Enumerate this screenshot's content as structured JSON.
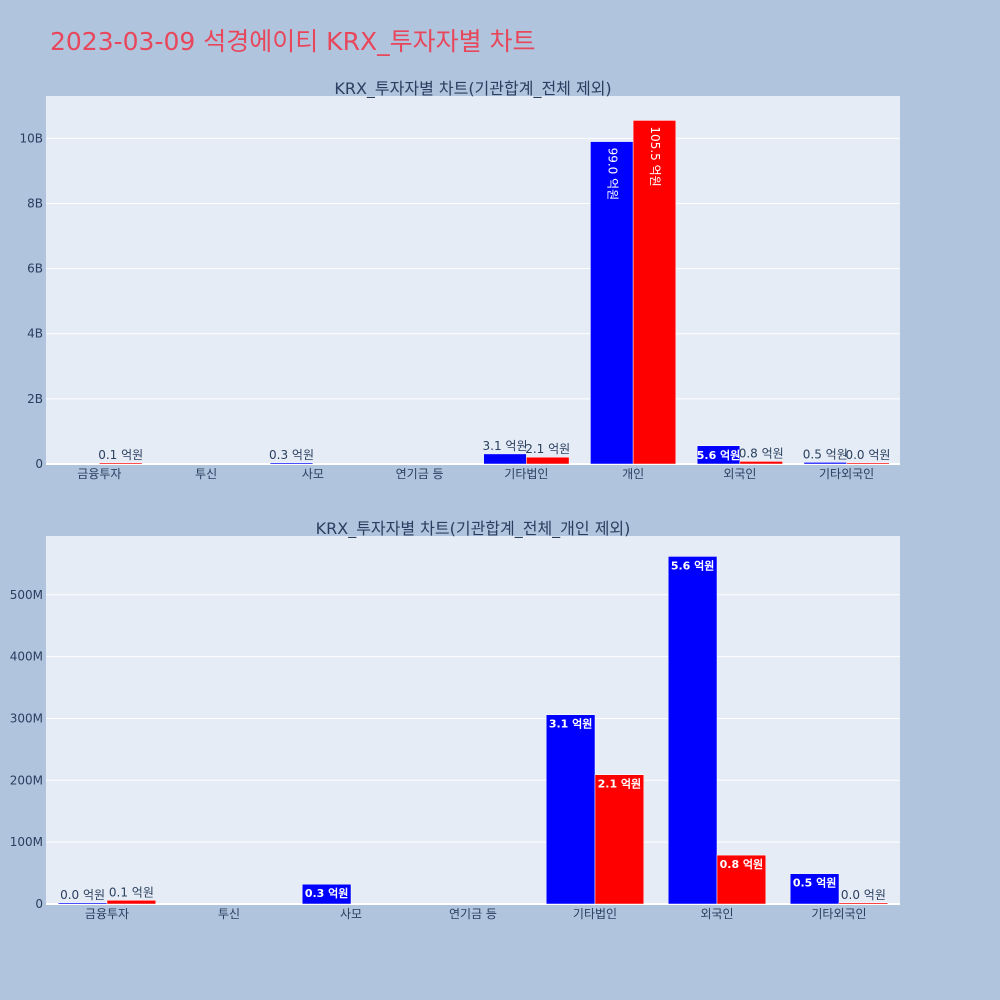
{
  "page": {
    "title": "2023-03-09 석경에이티 KRX_투자자별 차트"
  },
  "chart_data": [
    {
      "type": "bar",
      "title": "KRX_투자자별 차트(기관합계_전체 제외)",
      "categories": [
        "금융투자",
        "투신",
        "사모",
        "연기금 등",
        "기타법인",
        "개인",
        "외국인",
        "기타외국인"
      ],
      "ylim": [
        0,
        11300000000
      ],
      "ytick_values": [
        0,
        2000000000,
        4000000000,
        6000000000,
        8000000000,
        10000000000
      ],
      "ytick_labels": [
        "0",
        "2B",
        "4B",
        "6B",
        "8B",
        "10B"
      ],
      "grid": true,
      "series": [
        {
          "color": "#0000ff",
          "values": [
            null,
            null,
            30000000,
            null,
            310000000,
            9900000000,
            560000000,
            50000000
          ],
          "labels": [
            "",
            "",
            "0.3 억원",
            "",
            "3.1 억원",
            "99.0 억원",
            "5.6 억원",
            "0.5 억원"
          ]
        },
        {
          "color": "#ff0000",
          "values": [
            10000000,
            null,
            null,
            null,
            210000000,
            10550000000,
            80000000,
            2000000
          ],
          "labels": [
            "0.1 억원",
            "",
            "",
            "",
            "2.1 억원",
            "105.5 억원",
            "0.8 억원",
            "0.0 억원"
          ]
        }
      ]
    },
    {
      "type": "bar",
      "title": "KRX_투자자별 차트(기관합계_전체_개인 제외)",
      "categories": [
        "금융투자",
        "투신",
        "사모",
        "연기금 등",
        "기타법인",
        "외국인",
        "기타외국인"
      ],
      "ylim": [
        0,
        595000000
      ],
      "ytick_values": [
        0,
        100000000,
        200000000,
        300000000,
        400000000,
        500000000
      ],
      "ytick_labels": [
        "0",
        "100M",
        "200M",
        "300M",
        "400M",
        "500M"
      ],
      "grid": true,
      "series": [
        {
          "color": "#0000ff",
          "values": [
            1000000,
            null,
            32000000,
            null,
            306000000,
            562000000,
            49000000
          ],
          "labels": [
            "0.0 억원",
            "",
            "0.3 억원",
            "",
            "3.1 억원",
            "5.6 억원",
            "0.5 억원"
          ]
        },
        {
          "color": "#ff0000",
          "values": [
            6000000,
            null,
            null,
            null,
            209000000,
            79000000,
            2000000
          ],
          "labels": [
            "0.1 억원",
            "",
            "",
            "",
            "2.1 억원",
            "0.8 억원",
            "0.0 억원"
          ]
        }
      ]
    }
  ]
}
